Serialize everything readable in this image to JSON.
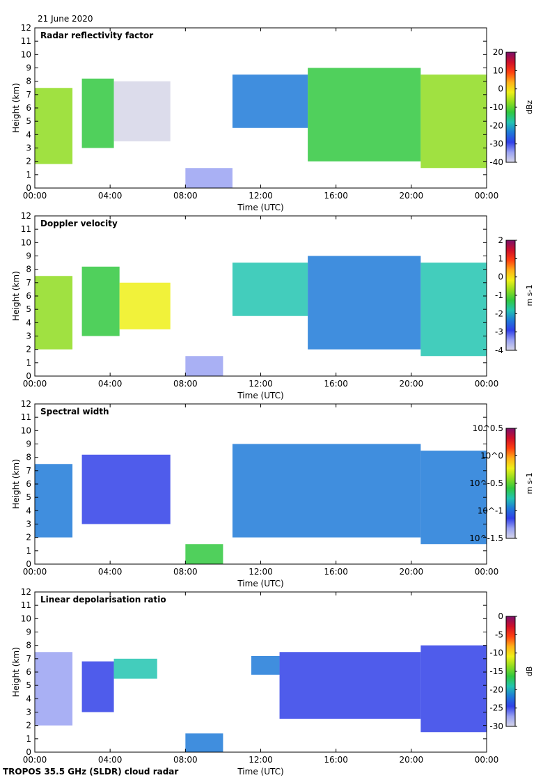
{
  "date_label": "21 June 2020",
  "footer_label": "TROPOS 35.5 GHz (SLDR) cloud radar",
  "chart_data": [
    {
      "type": "heatmap",
      "title": "Radar reflectivity factor",
      "xlabel": "Time (UTC)",
      "ylabel": "Height (km)",
      "x_ticks": [
        "00:00",
        "04:00",
        "08:00",
        "12:00",
        "16:00",
        "20:00",
        "00:00"
      ],
      "y_ticks": [
        "0",
        "1",
        "2",
        "3",
        "4",
        "5",
        "6",
        "7",
        "8",
        "9",
        "10",
        "11",
        "12"
      ],
      "xlim": [
        0,
        24
      ],
      "ylim": [
        0,
        12
      ],
      "colorbar": {
        "label": "dBz",
        "ticks": [
          "20",
          "10",
          "0",
          "-10",
          "-20",
          "-30",
          "-40"
        ],
        "range": [
          -40,
          20
        ]
      },
      "cloud_regions": [
        {
          "t0": 0,
          "t1": 2.0,
          "h0": 1.8,
          "h1": 7.5,
          "value": -5
        },
        {
          "t0": 2.5,
          "t1": 4.2,
          "h0": 3.0,
          "h1": 8.2,
          "value": -15
        },
        {
          "t0": 4.2,
          "t1": 7.2,
          "h0": 3.5,
          "h1": 8.0,
          "value": -38
        },
        {
          "t0": 8.0,
          "t1": 10.5,
          "h0": 0.0,
          "h1": 1.5,
          "value": -35
        },
        {
          "t0": 10.5,
          "t1": 14.5,
          "h0": 4.5,
          "h1": 8.5,
          "value": -25
        },
        {
          "t0": 14.5,
          "t1": 20.5,
          "h0": 2.0,
          "h1": 9.0,
          "value": -15
        },
        {
          "t0": 20.5,
          "t1": 24.0,
          "h0": 1.5,
          "h1": 8.5,
          "value": -5
        }
      ]
    },
    {
      "type": "heatmap",
      "title": "Doppler velocity",
      "xlabel": "Time (UTC)",
      "ylabel": "Height (km)",
      "x_ticks": [
        "00:00",
        "04:00",
        "08:00",
        "12:00",
        "16:00",
        "20:00",
        "00:00"
      ],
      "y_ticks": [
        "0",
        "1",
        "2",
        "3",
        "4",
        "5",
        "6",
        "7",
        "8",
        "9",
        "10",
        "11",
        "12"
      ],
      "xlim": [
        0,
        24
      ],
      "ylim": [
        0,
        12
      ],
      "colorbar": {
        "label": "m s-1",
        "ticks": [
          "2",
          "1",
          "0",
          "-1",
          "-2",
          "-3",
          "-4"
        ],
        "range": [
          -4,
          2
        ]
      },
      "cloud_regions": [
        {
          "t0": 0,
          "t1": 2.0,
          "h0": 2.0,
          "h1": 7.5,
          "value": -0.8
        },
        {
          "t0": 2.5,
          "t1": 4.5,
          "h0": 3.0,
          "h1": 8.2,
          "value": -1.5
        },
        {
          "t0": 4.5,
          "t1": 7.2,
          "h0": 3.5,
          "h1": 7.0,
          "value": -0.3
        },
        {
          "t0": 8.0,
          "t1": 10.0,
          "h0": 0.0,
          "h1": 1.5,
          "value": -3.2
        },
        {
          "t0": 10.5,
          "t1": 14.5,
          "h0": 4.5,
          "h1": 8.5,
          "value": -1.8
        },
        {
          "t0": 14.5,
          "t1": 20.5,
          "h0": 2.0,
          "h1": 9.0,
          "value": -2.3
        },
        {
          "t0": 20.5,
          "t1": 24.0,
          "h0": 1.5,
          "h1": 8.5,
          "value": -1.6
        }
      ]
    },
    {
      "type": "heatmap",
      "title": "Spectral width",
      "xlabel": "Time (UTC)",
      "ylabel": "Height (km)",
      "x_ticks": [
        "00:00",
        "04:00",
        "08:00",
        "12:00",
        "16:00",
        "20:00",
        "00:00"
      ],
      "y_ticks": [
        "0",
        "1",
        "2",
        "3",
        "4",
        "5",
        "6",
        "7",
        "8",
        "9",
        "10",
        "11",
        "12"
      ],
      "xlim": [
        0,
        24
      ],
      "ylim": [
        0,
        12
      ],
      "colorbar": {
        "label": "m s-1",
        "ticks": [
          "10^0.5",
          "10^0",
          "10^-0.5",
          "10^-1",
          "10^-1.5"
        ],
        "range": [
          -1.5,
          0.5
        ]
      },
      "cloud_regions": [
        {
          "t0": 0,
          "t1": 2.0,
          "h0": 2.0,
          "h1": 7.5,
          "value": -1.0
        },
        {
          "t0": 2.5,
          "t1": 7.2,
          "h0": 3.0,
          "h1": 8.2,
          "value": -1.1
        },
        {
          "t0": 8.0,
          "t1": 10.0,
          "h0": 0.0,
          "h1": 1.5,
          "value": -0.6
        },
        {
          "t0": 10.5,
          "t1": 20.5,
          "h0": 2.0,
          "h1": 9.0,
          "value": -1.0
        },
        {
          "t0": 20.5,
          "t1": 24.0,
          "h0": 1.5,
          "h1": 8.5,
          "value": -1.0
        }
      ]
    },
    {
      "type": "heatmap",
      "title": "Linear depolarisation ratio",
      "xlabel": "Time (UTC)",
      "ylabel": "Height (km)",
      "x_ticks": [
        "00:00",
        "04:00",
        "08:00",
        "12:00",
        "16:00",
        "20:00",
        "00:00"
      ],
      "y_ticks": [
        "0",
        "1",
        "2",
        "3",
        "4",
        "5",
        "6",
        "7",
        "8",
        "9",
        "10",
        "11",
        "12"
      ],
      "xlim": [
        0,
        24
      ],
      "ylim": [
        0,
        12
      ],
      "colorbar": {
        "label": "dB",
        "ticks": [
          "0",
          "-5",
          "-10",
          "-15",
          "-20",
          "-25",
          "-30"
        ],
        "range": [
          -30,
          0
        ]
      },
      "cloud_regions": [
        {
          "t0": 0,
          "t1": 2.0,
          "h0": 2.0,
          "h1": 7.5,
          "value": -27
        },
        {
          "t0": 2.5,
          "t1": 4.2,
          "h0": 3.0,
          "h1": 6.8,
          "value": -24
        },
        {
          "t0": 4.2,
          "t1": 6.5,
          "h0": 5.5,
          "h1": 7.0,
          "value": -19
        },
        {
          "t0": 8.0,
          "t1": 10.0,
          "h0": 0.0,
          "h1": 1.4,
          "value": -22
        },
        {
          "t0": 11.5,
          "t1": 13.0,
          "h0": 5.8,
          "h1": 7.2,
          "value": -22
        },
        {
          "t0": 13.0,
          "t1": 20.5,
          "h0": 2.5,
          "h1": 7.5,
          "value": -24
        },
        {
          "t0": 20.5,
          "t1": 24.0,
          "h0": 1.5,
          "h1": 8.0,
          "value": -25
        }
      ]
    }
  ]
}
